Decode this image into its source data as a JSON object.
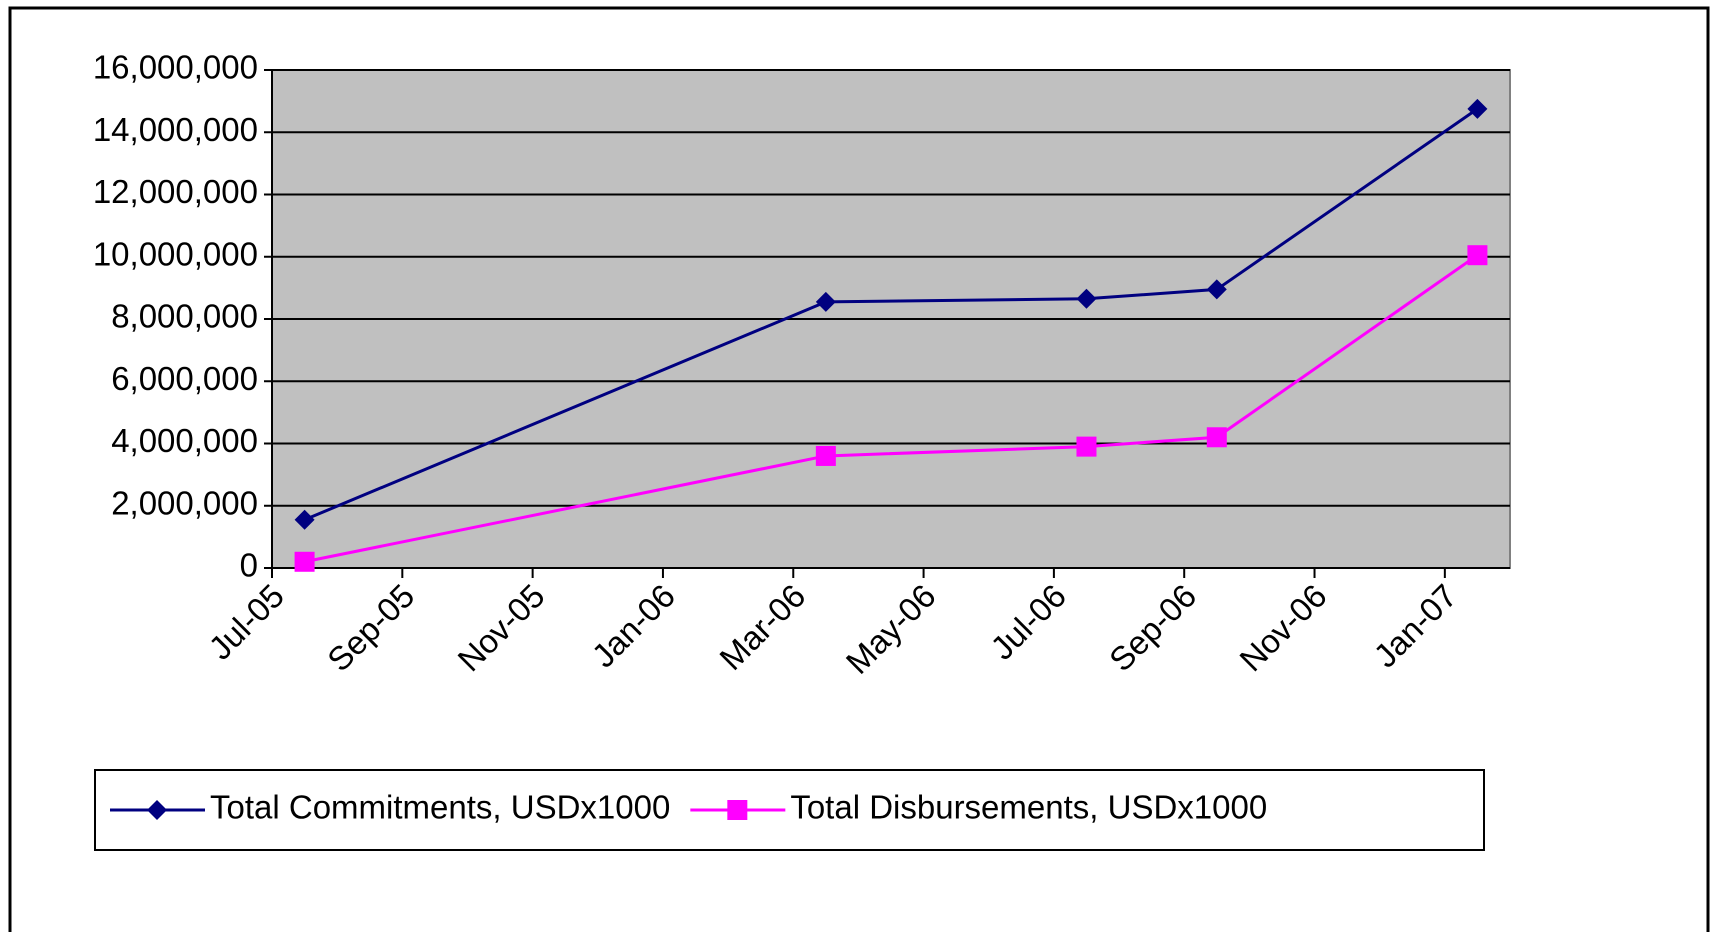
{
  "chart_data": {
    "type": "line",
    "x": [
      "2005-07",
      "2006-03",
      "2006-07",
      "2006-09",
      "2007-01"
    ],
    "series": [
      {
        "name": "Total Commitments, USDx1000",
        "color": "#000080",
        "marker": "diamond",
        "values": [
          1550000,
          8550000,
          8650000,
          8950000,
          14750000
        ]
      },
      {
        "name": "Total Disbursements, USDx1000",
        "color": "#ff00ff",
        "marker": "square",
        "values": [
          200000,
          3600000,
          3900000,
          4200000,
          10050000
        ]
      }
    ],
    "xlim": [
      "2005-07",
      "2007-02"
    ],
    "xticks": [
      {
        "value": "2005-07",
        "label": "Jul-05"
      },
      {
        "value": "2005-09",
        "label": "Sep-05"
      },
      {
        "value": "2005-11",
        "label": "Nov-05"
      },
      {
        "value": "2006-01",
        "label": "Jan-06"
      },
      {
        "value": "2006-03",
        "label": "Mar-06"
      },
      {
        "value": "2006-05",
        "label": "May-06"
      },
      {
        "value": "2006-07",
        "label": "Jul-06"
      },
      {
        "value": "2006-09",
        "label": "Sep-06"
      },
      {
        "value": "2006-11",
        "label": "Nov-06"
      },
      {
        "value": "2007-01",
        "label": "Jan-07"
      }
    ],
    "ylim": [
      0,
      16000000
    ],
    "yticks": [
      0,
      {
        "value": 2000000,
        "label": "2,000,000"
      },
      {
        "value": 4000000,
        "label": "4,000,000"
      },
      {
        "value": 6000000,
        "label": "6,000,000"
      },
      {
        "value": 8000000,
        "label": "8,000,000"
      },
      {
        "value": 10000000,
        "label": "10,000,000"
      },
      {
        "value": 12000000,
        "label": "12,000,000"
      },
      {
        "value": 14000000,
        "label": "14,000,000"
      },
      {
        "value": 16000000,
        "label": "16,000,000"
      }
    ],
    "grid": true,
    "plot_background": "#c0c0c0",
    "legend": "bottom"
  }
}
